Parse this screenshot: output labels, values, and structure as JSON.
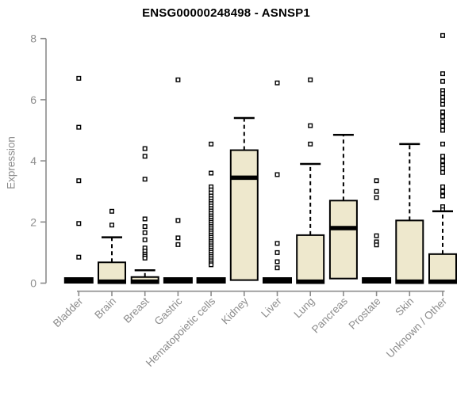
{
  "title": "ENSG00000248498 - ASNSP1",
  "chart_data": {
    "type": "boxplot",
    "title": "ENSG00000248498 - ASNSP1",
    "xlabel": "",
    "ylabel": "Expression",
    "ylim": [
      0,
      8
    ],
    "yticks": [
      0,
      2,
      4,
      6,
      8
    ],
    "grid": false,
    "legend": "none",
    "box_fill_color": "#EEE8CD",
    "box_stroke_color": "#000000",
    "axis_color": "#8C8C8C",
    "title_color": "#000000",
    "categories": [
      "Bladder",
      "Brain",
      "Breast",
      "Gastric",
      "Hematopoietic cells",
      "Kidney",
      "Liver",
      "Lung",
      "Pancreas",
      "Prostate",
      "Skin",
      "Unknown / Other"
    ],
    "boxes": [
      {
        "name": "Bladder",
        "flat": true,
        "q1": 0,
        "median": 0.05,
        "q3": 0.15,
        "whisker_high": null,
        "outliers": [
          6.7,
          5.1,
          3.35,
          1.95,
          0.85
        ]
      },
      {
        "name": "Brain",
        "flat": false,
        "q1": 0,
        "median": 0.05,
        "q3": 0.68,
        "whisker_high": 1.5,
        "outliers": [
          2.35,
          1.9
        ]
      },
      {
        "name": "Breast",
        "flat": false,
        "q1": 0,
        "median": 0.05,
        "q3": 0.2,
        "whisker_high": 0.42,
        "outliers": [
          4.4,
          4.15,
          3.4,
          2.1,
          1.85,
          1.65,
          1.42,
          1.15,
          1.05,
          0.95,
          0.88,
          0.82
        ]
      },
      {
        "name": "Gastric",
        "flat": true,
        "q1": 0,
        "median": 0.05,
        "q3": 0.15,
        "whisker_high": null,
        "outliers": [
          6.65,
          2.05,
          1.48,
          1.26
        ]
      },
      {
        "name": "Hematopoietic cells",
        "flat": true,
        "q1": 0,
        "median": 0.05,
        "q3": 0.15,
        "whisker_high": null,
        "outliers": [
          4.55,
          3.6,
          3.15,
          3.05,
          2.95,
          2.85,
          2.76,
          2.68,
          2.6,
          2.52,
          2.44,
          2.36,
          2.28,
          2.2,
          2.13,
          2.06,
          1.99,
          1.92,
          1.85,
          1.78,
          1.71,
          1.64,
          1.57,
          1.5,
          1.43,
          1.36,
          1.29,
          1.22,
          1.15,
          1.08,
          1.01,
          0.94,
          0.87,
          0.8,
          0.73,
          0.66,
          0.6
        ]
      },
      {
        "name": "Kidney",
        "flat": false,
        "q1": 0.1,
        "median": 3.45,
        "q3": 4.35,
        "whisker_high": 5.4,
        "outliers": []
      },
      {
        "name": "Liver",
        "flat": true,
        "q1": 0,
        "median": 0.05,
        "q3": 0.15,
        "whisker_high": null,
        "outliers": [
          6.55,
          3.55,
          1.3,
          1.0,
          0.7,
          0.5
        ]
      },
      {
        "name": "Lung",
        "flat": false,
        "q1": 0,
        "median": 0.05,
        "q3": 1.57,
        "whisker_high": 3.9,
        "outliers": [
          6.65,
          5.15,
          4.55
        ]
      },
      {
        "name": "Pancreas",
        "flat": false,
        "q1": 0.15,
        "median": 1.8,
        "q3": 2.7,
        "whisker_high": 4.85,
        "outliers": []
      },
      {
        "name": "Prostate",
        "flat": true,
        "q1": 0,
        "median": 0.05,
        "q3": 0.15,
        "whisker_high": null,
        "outliers": [
          3.35,
          3.0,
          2.8,
          1.55,
          1.35,
          1.25
        ]
      },
      {
        "name": "Skin",
        "flat": false,
        "q1": 0,
        "median": 0.05,
        "q3": 2.05,
        "whisker_high": 4.55,
        "outliers": []
      },
      {
        "name": "Unknown / Other",
        "flat": false,
        "q1": 0,
        "median": 0.05,
        "q3": 0.95,
        "whisker_high": 2.35,
        "outliers": [
          8.1,
          6.85,
          6.6,
          6.3,
          6.2,
          6.08,
          5.96,
          5.85,
          5.6,
          5.45,
          5.28,
          5.13,
          5.0,
          4.55,
          4.15,
          4.0,
          3.85,
          3.75,
          3.62,
          3.15,
          3.0,
          2.85,
          2.5,
          2.4
        ]
      }
    ]
  }
}
